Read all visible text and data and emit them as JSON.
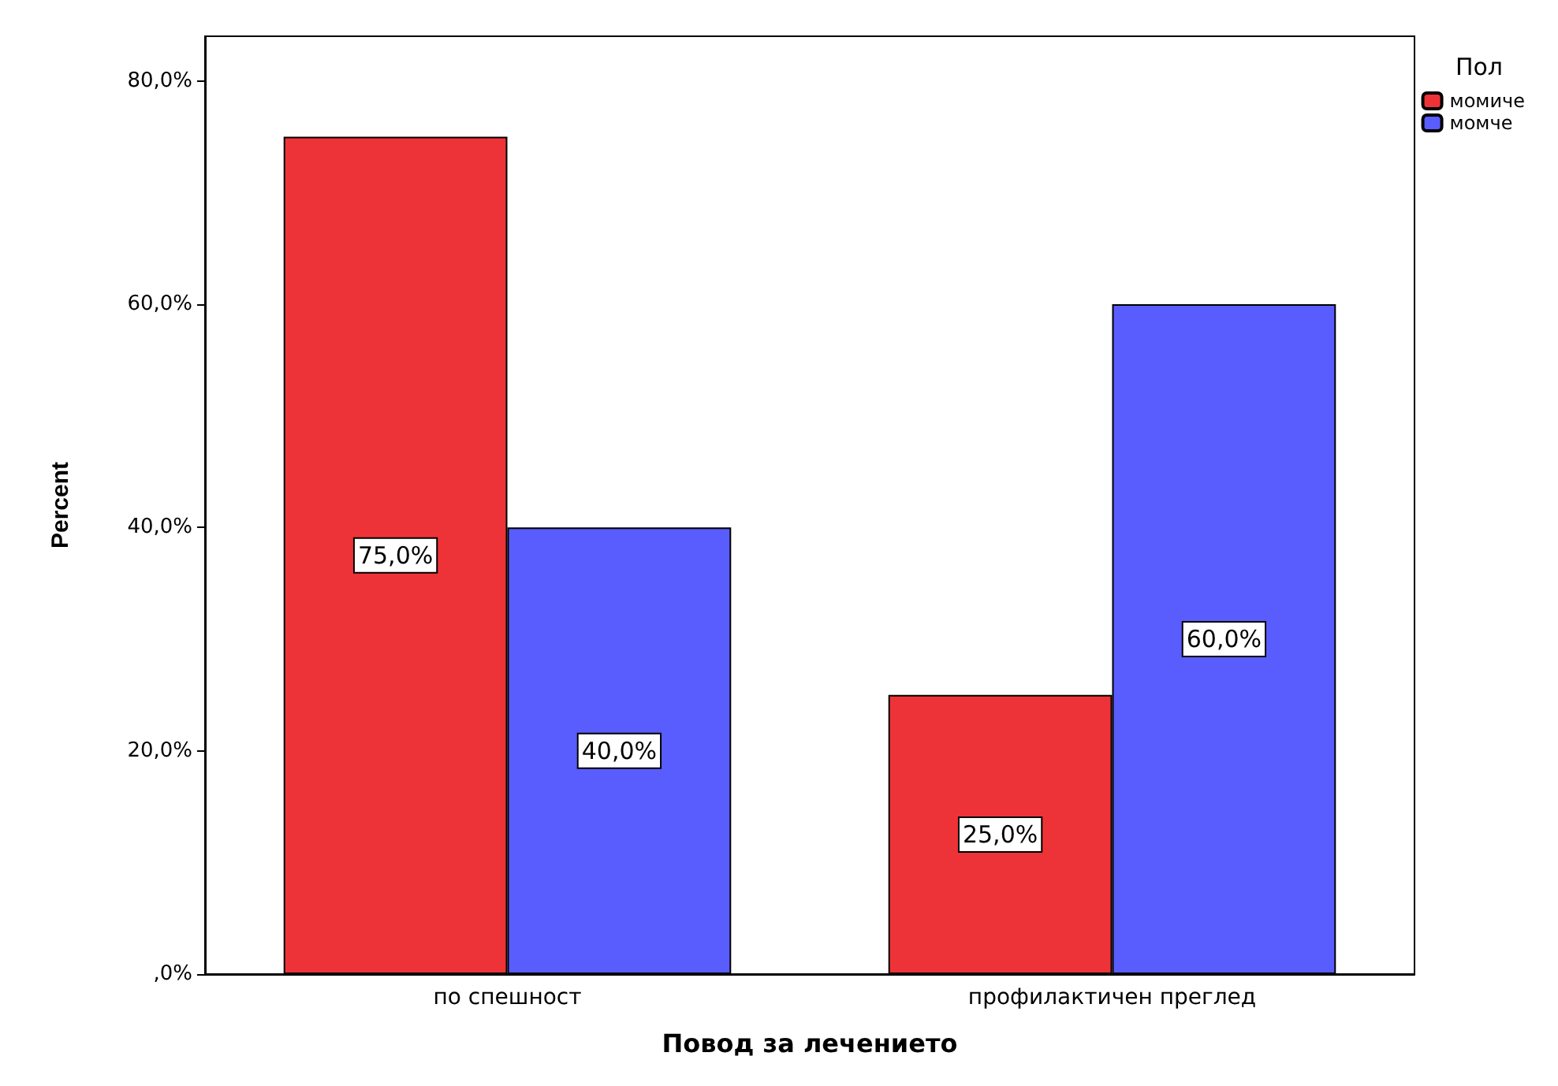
{
  "chart_data": {
    "type": "bar",
    "xlabel": "Повод за лечението",
    "ylabel": "Percent",
    "legend_title": "Пол",
    "categories": [
      "по спешност",
      "профилактичен преглед"
    ],
    "series": [
      {
        "name": "момиче",
        "color": "#ee3338",
        "values": [
          75,
          25
        ],
        "value_labels": [
          "75,0%",
          "25,0%"
        ]
      },
      {
        "name": "момче",
        "color": "#5a5dfd",
        "values": [
          40,
          60
        ],
        "value_labels": [
          "40,0%",
          "60,0%"
        ]
      }
    ],
    "ylim": [
      0,
      84
    ],
    "yticks": [
      {
        "value": 0,
        "label": ",0%"
      },
      {
        "value": 20,
        "label": "20,0%"
      },
      {
        "value": 40,
        "label": "40,0%"
      },
      {
        "value": 60,
        "label": "60,0%"
      },
      {
        "value": 80,
        "label": "80,0%"
      }
    ],
    "grid": false,
    "legend": "top right"
  }
}
